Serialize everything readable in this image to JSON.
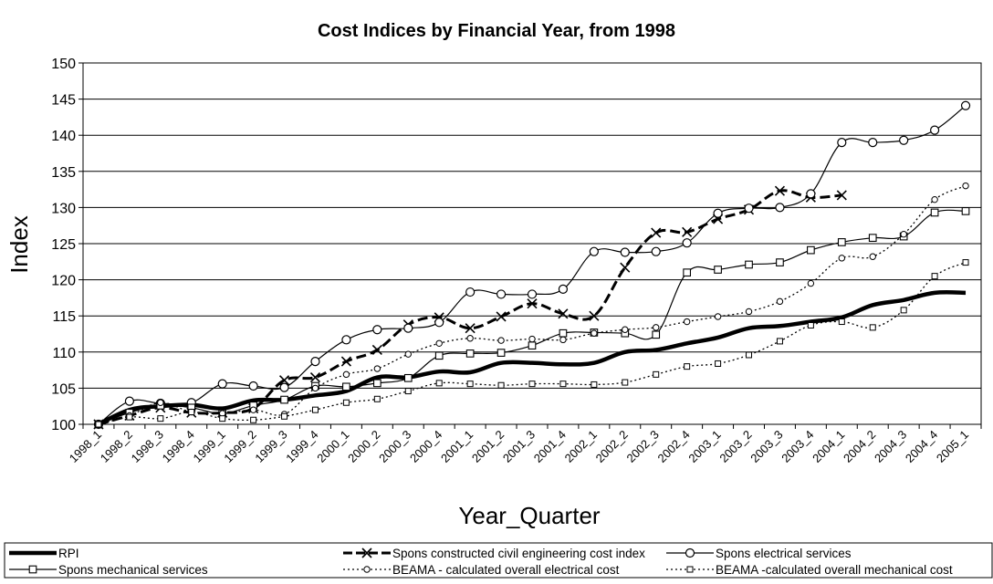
{
  "chart_data": {
    "type": "line",
    "title": "Cost Indices by Financial Year, from 1998",
    "xlabel": "Year_Quarter",
    "ylabel": "Index",
    "ylim": [
      100,
      150
    ],
    "yticks": [
      100,
      105,
      110,
      115,
      120,
      125,
      130,
      135,
      140,
      145,
      150
    ],
    "grid": "horizontal",
    "legend_position": "bottom",
    "categories": [
      "1998_1",
      "1998_2",
      "1998_3",
      "1998_4",
      "1999_1",
      "1999_2",
      "1999_3",
      "1999_4",
      "2000_1",
      "2000_2",
      "2000_3",
      "2000_4",
      "2001_1",
      "2001_2",
      "2001_3",
      "2001_4",
      "2002_1",
      "2002_2",
      "2002_3",
      "2002_4",
      "2003_1",
      "2003_2",
      "2003_3",
      "2003_4",
      "2004_1",
      "2004_2",
      "2004_3",
      "2004_4",
      "2005_1"
    ],
    "series": [
      {
        "name": "RPI",
        "color": "#000000",
        "style": "thick",
        "values": [
          100,
          102,
          102.5,
          102.7,
          102.2,
          103.3,
          103.4,
          104,
          104.6,
          106.5,
          106.5,
          107.3,
          107.2,
          108.5,
          108.5,
          108.3,
          108.5,
          110,
          110.3,
          111.2,
          112,
          113.3,
          113.6,
          114.2,
          114.8,
          116.5,
          117.2,
          118.2,
          118.2
        ]
      },
      {
        "name": "Spons constructed civil engineering cost index",
        "color": "#000000",
        "style": "thick-dashed",
        "marker": "x",
        "values": [
          100,
          101.2,
          102.3,
          101.6,
          101.6,
          102.2,
          106.1,
          106.5,
          108.7,
          110.3,
          113.8,
          114.8,
          113.3,
          114.9,
          116.7,
          115.3,
          115,
          121.7,
          126.5,
          126.6,
          128.4,
          129.7,
          132.3,
          131.4,
          131.7,
          null,
          null,
          null,
          null
        ]
      },
      {
        "name": "Spons electrical services",
        "color": "#000000",
        "style": "thin",
        "marker": "circle",
        "values": [
          100,
          103.2,
          102.9,
          103,
          105.6,
          105.3,
          105.1,
          108.7,
          111.7,
          113.1,
          113.3,
          114.1,
          118.3,
          118,
          118,
          118.7,
          123.9,
          123.8,
          123.9,
          125.1,
          129.2,
          129.9,
          130,
          131.9,
          139,
          139,
          139.3,
          140.7,
          144.1
        ]
      },
      {
        "name": "Spons mechanical services",
        "color": "#000000",
        "style": "thin",
        "marker": "square",
        "values": [
          100,
          101.6,
          102.6,
          102.3,
          101.5,
          102.6,
          103.4,
          105.3,
          105.2,
          105.7,
          106.4,
          109.5,
          109.8,
          109.9,
          110.9,
          112.6,
          112.7,
          112.6,
          112.4,
          121,
          121.4,
          122.1,
          122.4,
          124.1,
          125.2,
          125.8,
          126,
          129.3,
          129.5
        ]
      },
      {
        "name": "BEAMA - calculated overall electrical cost",
        "color": "#000000",
        "style": "dotted",
        "marker": "circle-small",
        "values": [
          100,
          101.2,
          103,
          101.7,
          101.5,
          102,
          101.4,
          105,
          106.9,
          107.7,
          109.7,
          111.2,
          111.9,
          111.6,
          111.8,
          111.7,
          112.6,
          113.1,
          113.4,
          114.2,
          114.9,
          115.6,
          117,
          119.5,
          123,
          123.2,
          126.3,
          131.1,
          133
        ]
      },
      {
        "name": "BEAMA -calculated overall mechanical cost",
        "color": "#000000",
        "style": "dotted",
        "marker": "square-small",
        "values": [
          100,
          101,
          100.8,
          101.7,
          100.8,
          100.6,
          101.1,
          102,
          103,
          103.5,
          104.6,
          105.7,
          105.6,
          105.4,
          105.6,
          105.6,
          105.5,
          105.8,
          106.9,
          108,
          108.4,
          109.6,
          111.5,
          113.7,
          114.2,
          113.4,
          115.8,
          120.5,
          122.4
        ]
      }
    ]
  }
}
